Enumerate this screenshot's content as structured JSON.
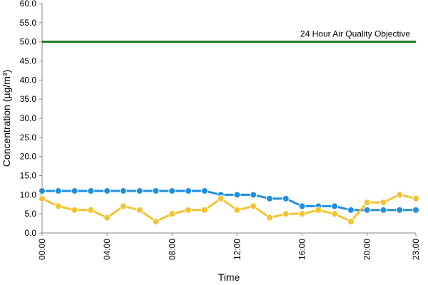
{
  "chart_data": {
    "type": "line",
    "title": "",
    "xlabel": "Time",
    "ylabel": "Concentration (µg/m³)",
    "ylim": [
      0,
      60
    ],
    "y_ticks": [
      "0.0",
      "5.0",
      "10.0",
      "15.0",
      "20.0",
      "25.0",
      "30.0",
      "35.0",
      "40.0",
      "45.0",
      "50.0",
      "55.0",
      "60.0"
    ],
    "x_ticks": [
      "00:00",
      "04:00",
      "08:00",
      "12:00",
      "16:00",
      "20:00",
      "23:00"
    ],
    "x": [
      0,
      1,
      2,
      3,
      4,
      5,
      6,
      7,
      8,
      9,
      10,
      11,
      12,
      13,
      14,
      15,
      16,
      17,
      18,
      19,
      20,
      21,
      22,
      23
    ],
    "grid": false,
    "legend": "none",
    "series": [
      {
        "color": "#1f8fe0",
        "values": [
          11,
          11,
          11,
          11,
          11,
          11,
          11,
          11,
          11,
          11,
          11,
          10,
          10,
          10,
          9,
          9,
          7,
          7,
          7,
          6,
          6,
          6,
          6,
          6
        ]
      },
      {
        "color": "#f2c430",
        "values": [
          9,
          7,
          6,
          6,
          4,
          7,
          6,
          3,
          5,
          6,
          6,
          9,
          6,
          7,
          4,
          5,
          5,
          6,
          5,
          3,
          8,
          8,
          10,
          9
        ]
      }
    ],
    "objective": {
      "label": "24 Hour Air Quality Objective",
      "value": 50,
      "color": "#1a7a1a"
    }
  }
}
